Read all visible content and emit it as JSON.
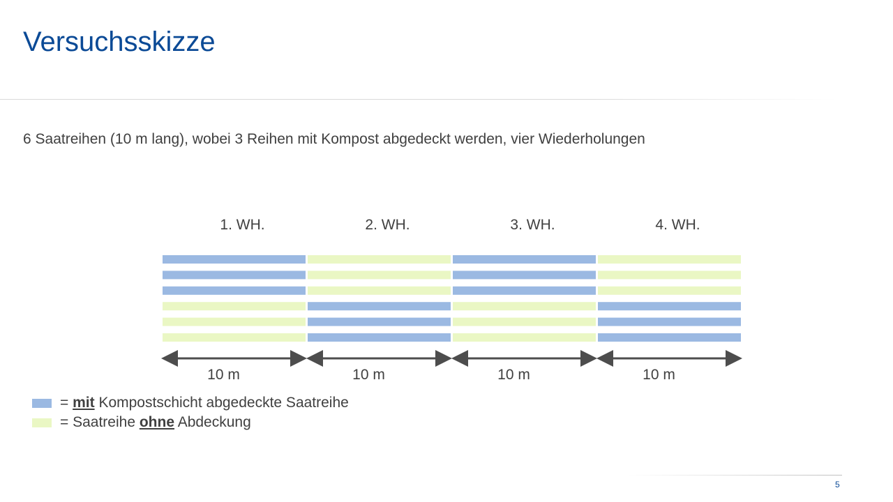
{
  "slide": {
    "title": "Versuchsskizze",
    "subtitle": "6 Saatreihen (10 m lang), wobei 3 Reihen mit Kompost abgedeckt werden, vier Wiederholungen",
    "page_number": "5"
  },
  "colors": {
    "covered": "#9bb9e2",
    "uncovered": "#eaf7c4",
    "title": "#0b4a96",
    "arrow": "#4d4d4d"
  },
  "diagram": {
    "blocks": [
      {
        "label": "1. WH.",
        "rows": [
          "covered",
          "covered",
          "covered",
          "uncovered",
          "uncovered",
          "uncovered"
        ],
        "length_label": "10 m"
      },
      {
        "label": "2. WH.",
        "rows": [
          "uncovered",
          "uncovered",
          "uncovered",
          "covered",
          "covered",
          "covered"
        ],
        "length_label": "10 m"
      },
      {
        "label": "3. WH.",
        "rows": [
          "covered",
          "covered",
          "covered",
          "uncovered",
          "uncovered",
          "uncovered"
        ],
        "length_label": "10 m"
      },
      {
        "label": "4. WH.",
        "rows": [
          "uncovered",
          "uncovered",
          "uncovered",
          "covered",
          "covered",
          "covered"
        ],
        "length_label": "10 m"
      }
    ]
  },
  "legend": {
    "covered": {
      "prefix": "= ",
      "emph": "mit",
      "suffix": " Kompostschicht abgedeckte Saatreihe"
    },
    "uncovered": {
      "prefix": "= Saatreihe ",
      "emph": "ohne",
      "suffix": " Abdeckung"
    }
  }
}
